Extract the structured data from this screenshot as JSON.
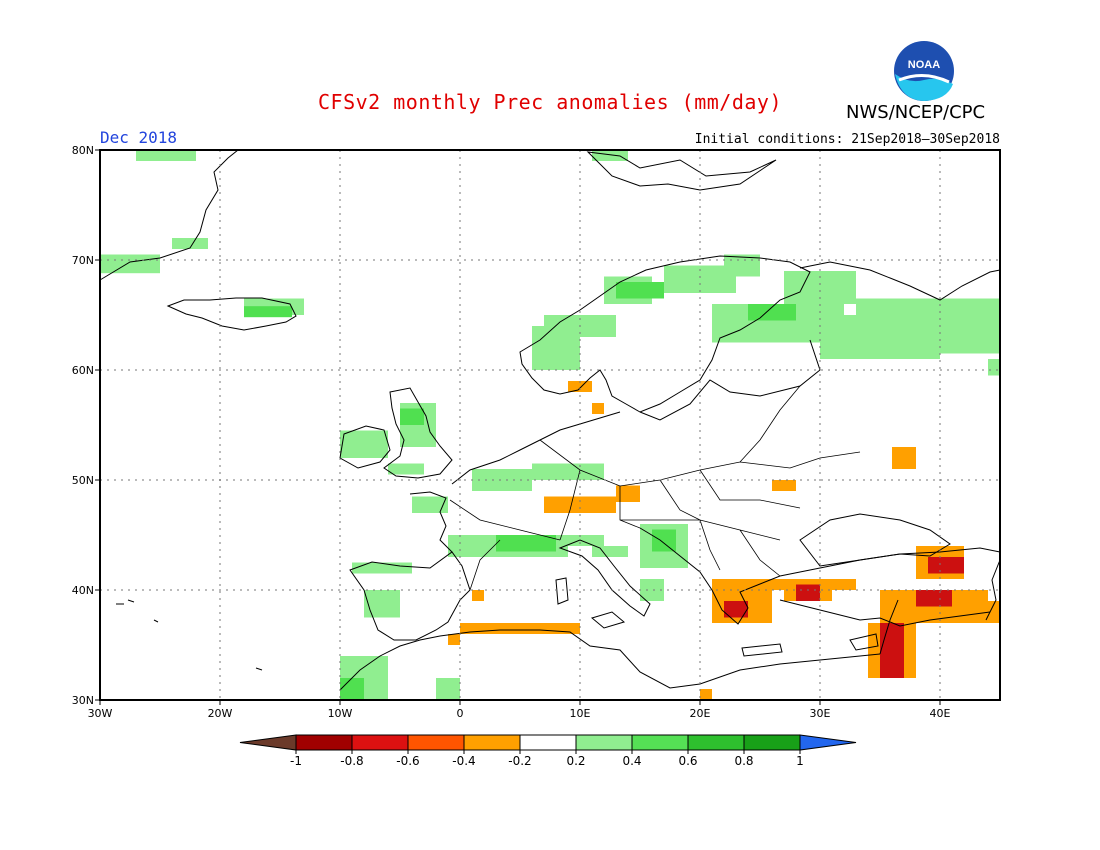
{
  "header": {
    "title": "CFSv2 monthly Prec anomalies (mm/day)",
    "org": "NWS/NCEP/CPC",
    "month": "Dec 2018",
    "init_conditions": "Initial conditions: 21Sep2018–30Sep2018"
  },
  "logo": {
    "text": "NOAA",
    "icon": "noaa-logo"
  },
  "map": {
    "lon_range": [
      -30,
      45
    ],
    "lat_range": [
      30,
      80
    ],
    "lon_ticks": [
      {
        "value": -30,
        "label": "30W"
      },
      {
        "value": -20,
        "label": "20W"
      },
      {
        "value": -10,
        "label": "10W"
      },
      {
        "value": 0,
        "label": "0"
      },
      {
        "value": 10,
        "label": "10E"
      },
      {
        "value": 20,
        "label": "20E"
      },
      {
        "value": 30,
        "label": "30E"
      },
      {
        "value": 40,
        "label": "40E"
      }
    ],
    "lat_ticks": [
      {
        "value": 30,
        "label": "30N"
      },
      {
        "value": 40,
        "label": "40N"
      },
      {
        "value": 50,
        "label": "50N"
      },
      {
        "value": 60,
        "label": "60N"
      },
      {
        "value": 70,
        "label": "70N"
      },
      {
        "value": 80,
        "label": "80N"
      }
    ],
    "grid": true,
    "colors": {
      "green_light": "#90ee90",
      "green_mid": "#50e050",
      "orange": "#ffa000",
      "orange_red": "#ff5500",
      "red": "#cc1010",
      "dark_red": "#a00000"
    },
    "anomaly_regions": [
      {
        "cls": "green_light",
        "lon": [
          -27,
          -22
        ],
        "lat": [
          79,
          80
        ]
      },
      {
        "cls": "green_light",
        "lon": [
          -30,
          -25
        ],
        "lat": [
          68.8,
          70.5
        ]
      },
      {
        "cls": "green_light",
        "lon": [
          -24,
          -21
        ],
        "lat": [
          71,
          72
        ]
      },
      {
        "cls": "green_light",
        "lon": [
          -18,
          -13
        ],
        "lat": [
          65,
          66.5
        ]
      },
      {
        "cls": "green_mid",
        "lon": [
          -18,
          -14
        ],
        "lat": [
          64.8,
          65.8
        ]
      },
      {
        "cls": "green_light",
        "lon": [
          11,
          14
        ],
        "lat": [
          79,
          80
        ]
      },
      {
        "cls": "green_light",
        "lon": [
          12,
          16
        ],
        "lat": [
          66,
          68.5
        ]
      },
      {
        "cls": "green_mid",
        "lon": [
          13,
          17
        ],
        "lat": [
          66.5,
          68
        ]
      },
      {
        "cls": "green_light",
        "lon": [
          17,
          23
        ],
        "lat": [
          67,
          69.5
        ]
      },
      {
        "cls": "green_light",
        "lon": [
          22,
          25
        ],
        "lat": [
          68.5,
          70.5
        ]
      },
      {
        "cls": "green_light",
        "lon": [
          6,
          10
        ],
        "lat": [
          60,
          64
        ]
      },
      {
        "cls": "green_light",
        "lon": [
          7,
          13
        ],
        "lat": [
          63,
          65
        ]
      },
      {
        "cls": "green_light",
        "lon": [
          21,
          32
        ],
        "lat": [
          62.5,
          66
        ]
      },
      {
        "cls": "green_mid",
        "lon": [
          24,
          28
        ],
        "lat": [
          64.5,
          66
        ]
      },
      {
        "cls": "green_light",
        "lon": [
          27,
          33
        ],
        "lat": [
          66,
          69
        ]
      },
      {
        "cls": "green_light",
        "lon": [
          30,
          40
        ],
        "lat": [
          61,
          65
        ]
      },
      {
        "cls": "green_light",
        "lon": [
          33,
          45
        ],
        "lat": [
          63,
          66.5
        ]
      },
      {
        "cls": "green_light",
        "lon": [
          40,
          45
        ],
        "lat": [
          61.5,
          64
        ]
      },
      {
        "cls": "green_light",
        "lon": [
          44,
          45
        ],
        "lat": [
          59.5,
          61
        ]
      },
      {
        "cls": "green_light",
        "lon": [
          -10,
          -6
        ],
        "lat": [
          52,
          54.5
        ]
      },
      {
        "cls": "green_light",
        "lon": [
          -5,
          -2
        ],
        "lat": [
          53,
          57
        ]
      },
      {
        "cls": "green_mid",
        "lon": [
          -5,
          -3
        ],
        "lat": [
          55,
          56.5
        ]
      },
      {
        "cls": "green_light",
        "lon": [
          -6,
          -3
        ],
        "lat": [
          50.5,
          51.5
        ]
      },
      {
        "cls": "green_light",
        "lon": [
          1,
          6
        ],
        "lat": [
          49,
          51
        ]
      },
      {
        "cls": "green_light",
        "lon": [
          6,
          12
        ],
        "lat": [
          50,
          51.5
        ]
      },
      {
        "cls": "green_light",
        "lon": [
          -4,
          -1
        ],
        "lat": [
          47,
          48.5
        ]
      },
      {
        "cls": "green_light",
        "lon": [
          -1,
          0
        ],
        "lat": [
          43,
          45
        ]
      },
      {
        "cls": "green_light",
        "lon": [
          0,
          9
        ],
        "lat": [
          43,
          45
        ]
      },
      {
        "cls": "green_mid",
        "lon": [
          3,
          8
        ],
        "lat": [
          43.5,
          45
        ]
      },
      {
        "cls": "green_light",
        "lon": [
          9,
          12
        ],
        "lat": [
          44,
          45
        ]
      },
      {
        "cls": "green_light",
        "lon": [
          11,
          14
        ],
        "lat": [
          43,
          44
        ]
      },
      {
        "cls": "green_light",
        "lon": [
          15,
          19
        ],
        "lat": [
          42,
          46
        ]
      },
      {
        "cls": "green_mid",
        "lon": [
          16,
          18
        ],
        "lat": [
          43.5,
          45.5
        ]
      },
      {
        "cls": "green_light",
        "lon": [
          -9,
          -4
        ],
        "lat": [
          41.5,
          42.5
        ]
      },
      {
        "cls": "green_light",
        "lon": [
          -8,
          -5
        ],
        "lat": [
          37.5,
          40
        ]
      },
      {
        "cls": "green_light",
        "lon": [
          -10,
          -6
        ],
        "lat": [
          30,
          34
        ]
      },
      {
        "cls": "green_mid",
        "lon": [
          -10,
          -8
        ],
        "lat": [
          30,
          32
        ]
      },
      {
        "cls": "green_light",
        "lon": [
          -2,
          0
        ],
        "lat": [
          30,
          32
        ]
      },
      {
        "cls": "green_light",
        "lon": [
          15,
          17
        ],
        "lat": [
          39,
          41
        ]
      },
      {
        "cls": "orange",
        "lon": [
          7,
          13
        ],
        "lat": [
          47,
          48.5
        ]
      },
      {
        "cls": "orange",
        "lon": [
          13,
          15
        ],
        "lat": [
          48,
          49.5
        ]
      },
      {
        "cls": "orange",
        "lon": [
          9,
          11
        ],
        "lat": [
          58,
          59
        ]
      },
      {
        "cls": "orange",
        "lon": [
          11,
          12
        ],
        "lat": [
          56,
          57
        ]
      },
      {
        "cls": "orange",
        "lon": [
          -1,
          0
        ],
        "lat": [
          35,
          36
        ]
      },
      {
        "cls": "orange",
        "lon": [
          0,
          10
        ],
        "lat": [
          36,
          37
        ]
      },
      {
        "cls": "orange",
        "lon": [
          1,
          2
        ],
        "lat": [
          39,
          40
        ]
      },
      {
        "cls": "orange",
        "lon": [
          21,
          26
        ],
        "lat": [
          37,
          41
        ]
      },
      {
        "cls": "red",
        "lon": [
          22,
          24
        ],
        "lat": [
          37.5,
          39
        ]
      },
      {
        "cls": "orange",
        "lon": [
          26,
          27
        ],
        "lat": [
          40,
          41
        ]
      },
      {
        "cls": "orange",
        "lon": [
          27,
          31
        ],
        "lat": [
          39,
          41
        ]
      },
      {
        "cls": "red",
        "lon": [
          28,
          30
        ],
        "lat": [
          39,
          40.5
        ]
      },
      {
        "cls": "orange",
        "lon": [
          31,
          33
        ],
        "lat": [
          40,
          41
        ]
      },
      {
        "cls": "orange",
        "lon": [
          35,
          44
        ],
        "lat": [
          37,
          40
        ]
      },
      {
        "cls": "orange",
        "lon": [
          34,
          38
        ],
        "lat": [
          32,
          37
        ]
      },
      {
        "cls": "red",
        "lon": [
          35,
          37
        ],
        "lat": [
          32,
          37
        ]
      },
      {
        "cls": "orange",
        "lon": [
          37,
          45
        ],
        "lat": [
          37,
          39
        ]
      },
      {
        "cls": "red",
        "lon": [
          38,
          41
        ],
        "lat": [
          38.5,
          40
        ]
      },
      {
        "cls": "orange",
        "lon": [
          38,
          42
        ],
        "lat": [
          41,
          44
        ]
      },
      {
        "cls": "red",
        "lon": [
          39,
          42
        ],
        "lat": [
          41.5,
          43
        ]
      },
      {
        "cls": "orange",
        "lon": [
          26,
          28
        ],
        "lat": [
          49,
          50
        ]
      },
      {
        "cls": "orange",
        "lon": [
          36,
          38
        ],
        "lat": [
          51,
          53
        ]
      },
      {
        "cls": "orange",
        "lon": [
          20,
          21
        ],
        "lat": [
          30,
          31
        ]
      }
    ]
  },
  "colorbar": {
    "segments": [
      {
        "color": "#6b3a2a",
        "label": "-1"
      },
      {
        "color": "#a00000",
        "label": "-0.8"
      },
      {
        "color": "#dd1111",
        "label": "-0.6"
      },
      {
        "color": "#ff5500",
        "label": "-0.4"
      },
      {
        "color": "#ffa000",
        "label": "-0.2"
      },
      {
        "color": "#ffffff",
        "label": "0.2"
      },
      {
        "color": "#90ee90",
        "label": "0.4"
      },
      {
        "color": "#55e055",
        "label": "0.6"
      },
      {
        "color": "#2ec02e",
        "label": "0.8"
      },
      {
        "color": "#18a018",
        "label": "1"
      },
      {
        "color": "#2266ee",
        "label": ""
      }
    ]
  }
}
